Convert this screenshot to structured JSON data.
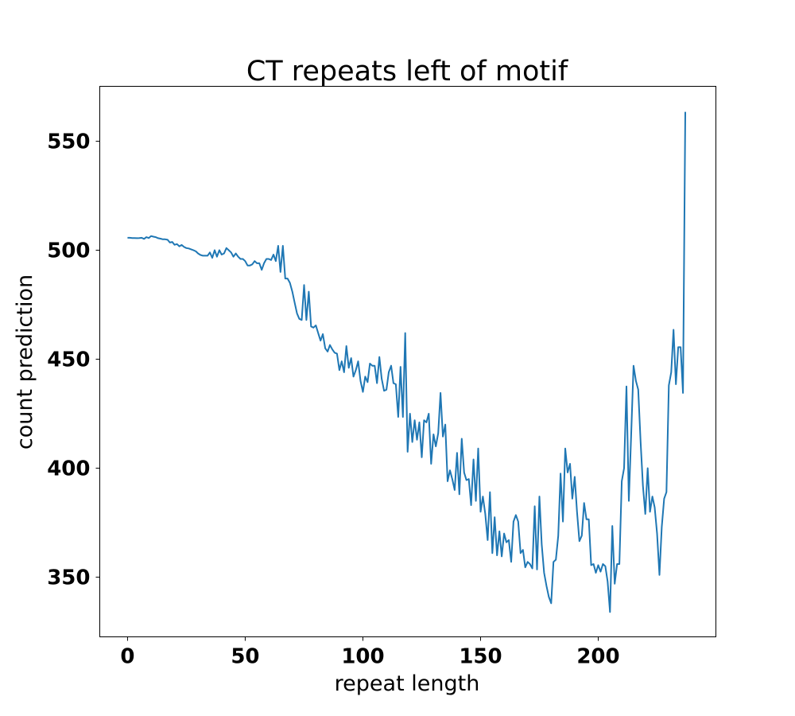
{
  "chart_data": {
    "type": "line",
    "title": "CT repeats left of motif",
    "xlabel": "repeat length",
    "ylabel": "count prediction",
    "xlim": [
      -11.8,
      250
    ],
    "ylim": [
      322.6,
      575.2
    ],
    "xticks": [
      0,
      50,
      100,
      150,
      200
    ],
    "yticks": [
      350,
      400,
      450,
      500,
      550
    ],
    "grid": false,
    "line_color": "#1f77b4",
    "x_start": 0,
    "x_step": 1,
    "values": [
      505.7,
      505.7,
      505.6,
      505.6,
      505.5,
      505.6,
      505.7,
      505.2,
      506,
      505.6,
      506.5,
      506.2,
      506,
      505.5,
      505.3,
      505,
      505,
      504.8,
      503.5,
      503.8,
      502.5,
      502.8,
      501.8,
      502.4,
      501.5,
      501,
      500.8,
      500.4,
      500,
      499.5,
      498.5,
      497.8,
      497.5,
      497.5,
      497.5,
      499,
      496.5,
      500,
      497,
      500,
      498,
      498.5,
      501,
      500,
      499,
      497,
      498.5,
      497,
      496,
      496,
      495,
      493,
      493,
      493.5,
      495,
      494,
      494,
      491,
      494,
      496,
      496,
      495.5,
      498,
      495,
      502,
      490,
      502,
      487,
      487,
      485,
      481,
      476,
      471,
      468.5,
      468,
      484,
      468,
      481,
      465,
      464.5,
      465.5,
      462,
      458.5,
      461.5,
      455,
      453.5,
      456.5,
      454.5,
      453,
      452.5,
      445,
      449,
      444,
      456,
      446,
      450.5,
      442,
      445,
      449,
      440,
      435,
      442,
      439.5,
      448,
      447,
      447,
      439,
      451,
      441,
      435.5,
      436,
      444,
      447,
      439,
      438.5,
      423.5,
      446.5,
      423.5,
      462,
      407.5,
      425,
      412,
      422,
      413,
      421,
      405,
      422,
      421,
      425,
      402,
      415.5,
      410,
      416,
      434.5,
      414.5,
      420,
      394,
      399,
      395,
      390,
      407,
      388,
      413.5,
      398,
      394.5,
      395,
      383,
      404,
      385,
      409,
      380,
      387,
      379,
      367,
      389,
      361,
      377.5,
      360,
      371,
      359.5,
      370,
      366,
      367,
      357,
      375.5,
      378.5,
      375.5,
      361,
      362.5,
      354.5,
      357,
      356,
      354,
      382.5,
      353.5,
      387,
      365,
      352,
      346,
      341,
      338,
      357,
      358,
      369,
      397.5,
      375.5,
      409,
      398,
      402,
      386,
      396,
      380,
      366.5,
      369,
      384,
      376.5,
      376.5,
      355.5,
      356,
      352,
      355.5,
      352.5,
      356,
      355,
      348,
      334,
      373.5,
      347,
      356,
      356,
      394,
      400,
      437.5,
      385,
      415,
      447,
      440,
      436,
      412,
      392,
      379,
      400,
      380,
      387,
      382,
      370,
      351,
      373,
      386,
      389,
      438,
      444,
      463.5,
      438.5,
      455.5,
      455.5,
      434.5,
      563.5
    ]
  }
}
